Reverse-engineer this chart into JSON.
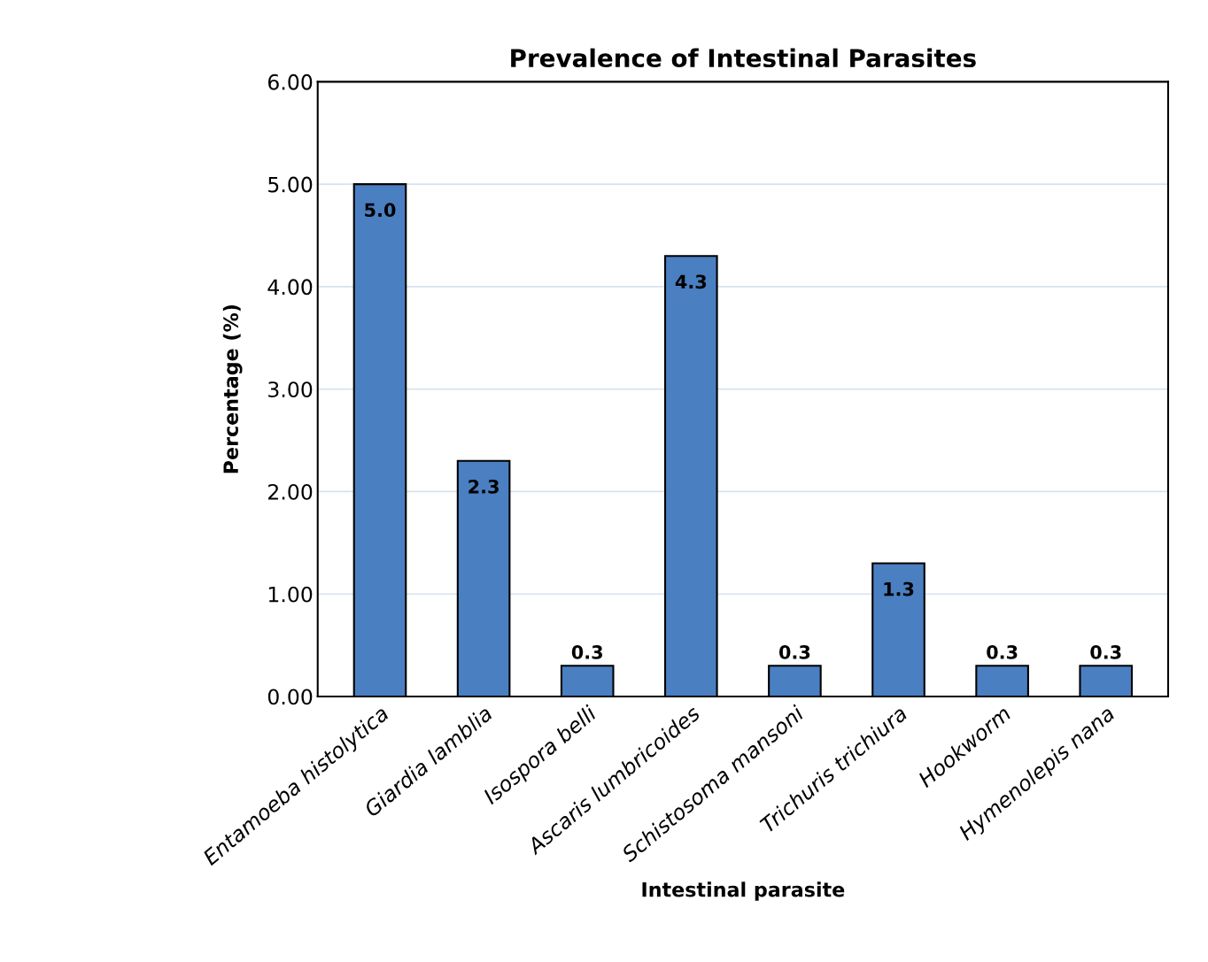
{
  "chart_data": {
    "type": "bar",
    "title": "Prevalence of Intestinal Parasites",
    "xlabel": "Intestinal parasite",
    "ylabel": "Percentage (%)",
    "categories": [
      "Entamoeba histolytica",
      "Giardia lamblia",
      "Isospora belli",
      "Ascaris lumbricoides",
      "Schistosoma mansoni",
      "Trichuris trichiura",
      "Hookworm",
      "Hymenolepis nana"
    ],
    "values": [
      5.0,
      2.3,
      0.3,
      4.3,
      0.3,
      1.3,
      0.3,
      0.3
    ],
    "color": "#4a7fc1",
    "ylim": [
      0,
      6
    ],
    "yticks": [
      {
        "value": 0,
        "label": "0.00"
      },
      {
        "value": 1,
        "label": "1.00"
      },
      {
        "value": 2,
        "label": "2.00"
      },
      {
        "value": 3,
        "label": "3.00"
      },
      {
        "value": 4,
        "label": "4.00"
      },
      {
        "value": 5,
        "label": "5.00"
      },
      {
        "value": 6,
        "label": "6.00"
      }
    ],
    "value_labels": [
      "5.0",
      "2.3",
      "0.3",
      "4.3",
      "0.3",
      "1.3",
      "0.3",
      "0.3"
    ],
    "grid": "y"
  }
}
